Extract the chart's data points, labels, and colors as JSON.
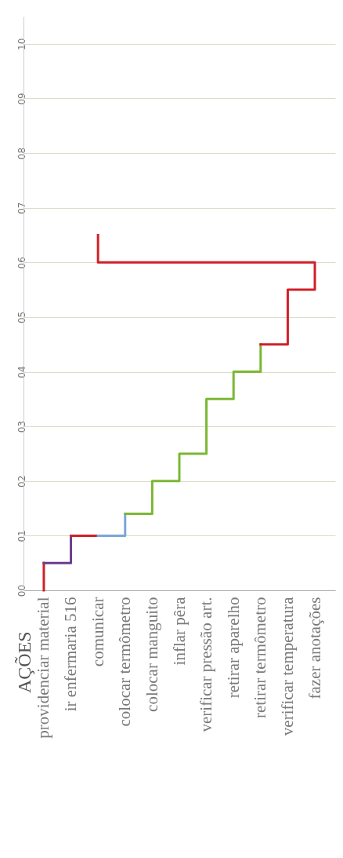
{
  "chart_data": {
    "type": "line",
    "annotations": [
      "AÇÕES"
    ],
    "categories": [
      "providenciar material",
      "ir enfermaria 516",
      "comunicar",
      "colocar termômetro",
      "colocar manguito",
      "inflar pêra",
      "verificar pressão art.",
      "retirar aparelho",
      "retirar termômetro",
      "verificar temperatura",
      "fazer anotações"
    ],
    "series": [
      {
        "color": "#d0202a",
        "x": [
          "providenciar material",
          "providenciar material"
        ],
        "values": [
          0,
          0.5
        ]
      },
      {
        "color": "#6a3d8f",
        "x": [
          "providenciar material",
          "ir enfermaria 516",
          "ir enfermaria 516"
        ],
        "values": [
          0.5,
          0.5,
          1.0
        ]
      },
      {
        "color": "#d0202a",
        "x": [
          "ir enfermaria 516",
          "comunicar"
        ],
        "values": [
          1.0,
          1.0
        ]
      },
      {
        "color": "#7aa6d8",
        "x": [
          "comunicar",
          "colocar termômetro",
          "colocar termômetro"
        ],
        "values": [
          1.0,
          1.0,
          1.4
        ]
      },
      {
        "color": "#7ab833",
        "x": [
          "colocar termômetro",
          "colocar manguito",
          "colocar manguito",
          "inflar pêra",
          "inflar pêra",
          "verificar pressão art.",
          "verificar pressão art.",
          "retirar aparelho",
          "retirar aparelho",
          "retirar termômetro",
          "retirar termômetro"
        ],
        "values": [
          1.4,
          1.4,
          2.0,
          2.0,
          2.5,
          2.5,
          3.5,
          3.5,
          4.0,
          4.0,
          4.5
        ]
      },
      {
        "color": "#d0202a",
        "x": [
          "retirar termômetro",
          "verificar temperatura",
          "verificar temperatura",
          "fazer anotações",
          "fazer anotações",
          "comunicar",
          "comunicar"
        ],
        "values": [
          4.5,
          4.5,
          5.5,
          5.5,
          6.0,
          6.0,
          6.5
        ]
      }
    ],
    "ylim": [
      0,
      10.5
    ],
    "yticks": [
      {
        "value": 0,
        "label": "00"
      },
      {
        "value": 1,
        "label": "01"
      },
      {
        "value": 2,
        "label": "02"
      },
      {
        "value": 3,
        "label": "03"
      },
      {
        "value": 4,
        "label": "04"
      },
      {
        "value": 5,
        "label": "05"
      },
      {
        "value": 6,
        "label": "06"
      },
      {
        "value": 7,
        "label": "07"
      },
      {
        "value": 8,
        "label": "08"
      },
      {
        "value": 9,
        "label": "09"
      },
      {
        "value": 10,
        "label": "10"
      }
    ],
    "grid": "y"
  }
}
